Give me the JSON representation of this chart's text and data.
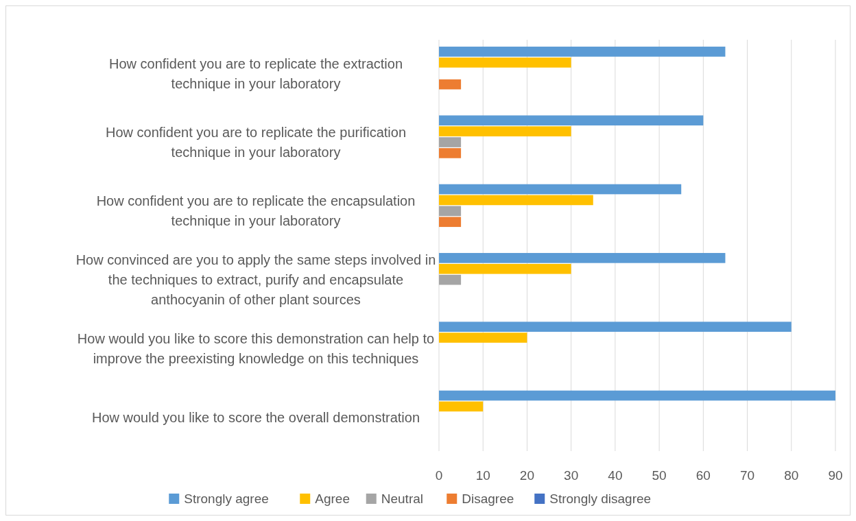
{
  "chart_data": {
    "type": "bar",
    "orientation": "horizontal",
    "categories": [
      "How confident you are to replicate the extraction technique in your laboratory",
      "How confident you are to replicate the purification technique in your laboratory",
      "How confident you are to replicate the encapsulation technique in your laboratory",
      "How convinced are you to apply the same steps involved in the techniques to extract, purify and encapsulate anthocyanin of other plant sources",
      "How would you like to score this demonstration can help to improve the preexisting knowledge on this techniques",
      "How would you like to score the overall demonstration"
    ],
    "series": [
      {
        "name": "Strongly agree",
        "color": "#5b9bd5",
        "values": [
          65,
          60,
          55,
          65,
          80,
          90
        ]
      },
      {
        "name": "Agree",
        "color": "#ffc000",
        "values": [
          30,
          30,
          35,
          30,
          20,
          10
        ]
      },
      {
        "name": "Neutral",
        "color": "#a5a5a5",
        "values": [
          0,
          5,
          5,
          5,
          0,
          0
        ]
      },
      {
        "name": "Disagree",
        "color": "#ed7d31",
        "values": [
          5,
          5,
          5,
          0,
          0,
          0
        ]
      },
      {
        "name": "Strongly disagree",
        "color": "#4472c4",
        "values": [
          0,
          0,
          0,
          0,
          0,
          0
        ]
      }
    ],
    "xlim": [
      0,
      90
    ],
    "xticks": [
      0,
      10,
      20,
      30,
      40,
      50,
      60,
      70,
      80,
      90
    ],
    "grid": "x",
    "legend": "bottom"
  }
}
